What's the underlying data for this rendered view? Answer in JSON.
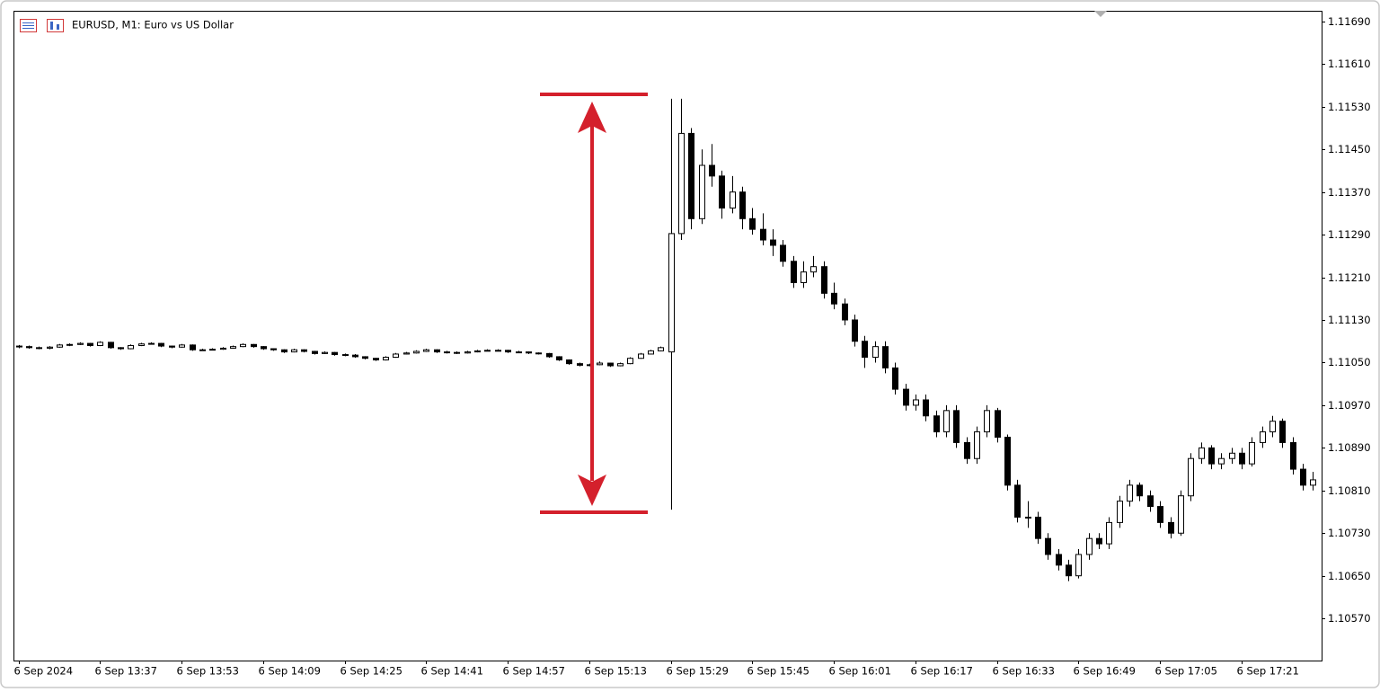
{
  "chart_data": {
    "type": "candlestick",
    "title": "EURUSD, M1:  Euro vs US Dollar",
    "categories": [
      "6 Sep 2024",
      null,
      null,
      null,
      null,
      null,
      null,
      null,
      "6 Sep 13:37",
      null,
      null,
      null,
      null,
      null,
      null,
      null,
      "6 Sep 13:53",
      null,
      null,
      null,
      null,
      null,
      null,
      null,
      "6 Sep 14:09",
      null,
      null,
      null,
      null,
      null,
      null,
      null,
      "6 Sep 14:25",
      null,
      null,
      null,
      null,
      null,
      null,
      null,
      "6 Sep 14:41",
      null,
      null,
      null,
      null,
      null,
      null,
      null,
      "6 Sep 14:57",
      null,
      null,
      null,
      null,
      null,
      null,
      null,
      "6 Sep 15:13",
      null,
      null,
      null,
      null,
      null,
      null,
      null,
      "6 Sep 15:29",
      null,
      null,
      null,
      null,
      null,
      null,
      null,
      "6 Sep 15:45",
      null,
      null,
      null,
      null,
      null,
      null,
      null,
      "6 Sep 16:01",
      null,
      null,
      null,
      null,
      null,
      null,
      null,
      "6 Sep 16:17",
      null,
      null,
      null,
      null,
      null,
      null,
      null,
      "6 Sep 16:33",
      null,
      null,
      null,
      null,
      null,
      null,
      null,
      "6 Sep 16:49",
      null,
      null,
      null,
      null,
      null,
      null,
      null,
      "6 Sep 17:05",
      null,
      null,
      null,
      null,
      null,
      null,
      null,
      "6 Sep 17:21",
      null,
      null,
      null,
      null,
      null,
      null,
      null
    ],
    "open": [
      1.11081,
      1.1108,
      1.11078,
      1.11077,
      1.11079,
      1.11083,
      1.11084,
      1.11086,
      1.11082,
      1.11088,
      1.11078,
      1.11076,
      1.11082,
      1.11085,
      1.11086,
      1.11081,
      1.11079,
      1.11083,
      1.11074,
      1.11074,
      1.11075,
      1.11077,
      1.1108,
      1.11084,
      1.1108,
      1.11076,
      1.11074,
      1.1107,
      1.11074,
      1.11071,
      1.11067,
      1.11069,
      1.11065,
      1.11064,
      1.11061,
      1.11058,
      1.11055,
      1.1106,
      1.11066,
      1.11068,
      1.11071,
      1.11074,
      1.1107,
      1.11069,
      1.11068,
      1.1107,
      1.11072,
      1.11073,
      1.11073,
      1.1107,
      1.1107,
      1.11068,
      1.11067,
      1.11061,
      1.11055,
      1.11048,
      1.11045,
      1.11046,
      1.11049,
      1.11044,
      1.11048,
      1.11058,
      1.11066,
      1.11072,
      1.1107,
      1.11292,
      1.1148,
      1.1132,
      1.1142,
      1.114,
      1.1134,
      1.1137,
      1.1132,
      1.113,
      1.1128,
      1.1127,
      1.1124,
      1.112,
      1.1122,
      1.1123,
      1.1118,
      1.1116,
      1.1113,
      1.1109,
      1.1106,
      1.1108,
      1.1104,
      1.11,
      1.1097,
      1.1098,
      1.1095,
      1.1092,
      1.1096,
      1.109,
      1.1087,
      1.1092,
      1.1096,
      1.1091,
      1.1082,
      1.1076,
      1.1076,
      1.1072,
      1.1069,
      1.1067,
      1.1065,
      1.1069,
      1.1072,
      1.1071,
      1.1075,
      1.1079,
      1.1082,
      1.108,
      1.1078,
      1.1075,
      1.1073,
      1.108,
      1.1087,
      1.1089,
      1.1086,
      1.1087,
      1.1088,
      1.1086,
      1.109,
      1.1092,
      1.1094,
      1.109,
      1.1085,
      1.1082
    ],
    "high": [
      1.11083,
      1.11082,
      1.1108,
      1.11081,
      1.11085,
      1.11086,
      1.11088,
      1.11087,
      1.1109,
      1.11089,
      1.11079,
      1.11084,
      1.11087,
      1.11088,
      1.11087,
      1.11082,
      1.11085,
      1.11084,
      1.11076,
      1.11077,
      1.11079,
      1.11082,
      1.11086,
      1.11085,
      1.11081,
      1.11077,
      1.11075,
      1.11076,
      1.11075,
      1.11072,
      1.11071,
      1.1107,
      1.11067,
      1.11066,
      1.11062,
      1.11059,
      1.11062,
      1.11068,
      1.1107,
      1.11073,
      1.11076,
      1.11075,
      1.11072,
      1.11071,
      1.11072,
      1.11074,
      1.11075,
      1.11075,
      1.11074,
      1.11072,
      1.11071,
      1.11069,
      1.11068,
      1.11062,
      1.11056,
      1.1105,
      1.11048,
      1.11052,
      1.1105,
      1.1105,
      1.1106,
      1.11068,
      1.11074,
      1.1108,
      1.11545,
      1.11545,
      1.1149,
      1.1145,
      1.1146,
      1.1141,
      1.114,
      1.1138,
      1.1134,
      1.1133,
      1.113,
      1.1128,
      1.1125,
      1.1124,
      1.1125,
      1.1124,
      1.112,
      1.1117,
      1.1114,
      1.111,
      1.1109,
      1.1109,
      1.1105,
      1.1101,
      1.1099,
      1.1099,
      1.1096,
      1.1097,
      1.1097,
      1.1091,
      1.1093,
      1.1097,
      1.10965,
      1.10915,
      1.1083,
      1.1079,
      1.1077,
      1.1073,
      1.107,
      1.1068,
      1.107,
      1.1073,
      1.1073,
      1.1076,
      1.108,
      1.1083,
      1.10825,
      1.1081,
      1.1079,
      1.1076,
      1.1081,
      1.1088,
      1.109,
      1.10895,
      1.1088,
      1.1089,
      1.1089,
      1.1091,
      1.1093,
      1.1095,
      1.10945,
      1.1091,
      1.1086,
      1.10845
    ],
    "low": [
      1.11077,
      1.11076,
      1.11075,
      1.11075,
      1.11078,
      1.11081,
      1.11083,
      1.1108,
      1.11081,
      1.11076,
      1.11074,
      1.11075,
      1.11081,
      1.11084,
      1.11079,
      1.11077,
      1.11078,
      1.11072,
      1.11072,
      1.11073,
      1.11074,
      1.11076,
      1.11079,
      1.11078,
      1.11074,
      1.11072,
      1.11068,
      1.11069,
      1.11069,
      1.11065,
      1.11066,
      1.11063,
      1.11062,
      1.11059,
      1.11056,
      1.11053,
      1.11054,
      1.11059,
      1.11065,
      1.11067,
      1.1107,
      1.11068,
      1.11067,
      1.11066,
      1.11067,
      1.11069,
      1.11071,
      1.11071,
      1.11068,
      1.11068,
      1.11066,
      1.11065,
      1.11059,
      1.11053,
      1.11046,
      1.11043,
      1.11043,
      1.11045,
      1.11042,
      1.11043,
      1.11047,
      1.11057,
      1.11065,
      1.11071,
      1.10774,
      1.1128,
      1.113,
      1.1131,
      1.1138,
      1.1132,
      1.1133,
      1.113,
      1.1129,
      1.1127,
      1.1125,
      1.1123,
      1.1119,
      1.1119,
      1.1121,
      1.1117,
      1.1115,
      1.1112,
      1.1108,
      1.1104,
      1.1105,
      1.1103,
      1.1099,
      1.1096,
      1.1096,
      1.1094,
      1.1091,
      1.1091,
      1.1089,
      1.1086,
      1.1086,
      1.1091,
      1.109,
      1.1081,
      1.1075,
      1.1074,
      1.1071,
      1.1068,
      1.1066,
      1.1064,
      1.10645,
      1.1068,
      1.107,
      1.107,
      1.1074,
      1.1078,
      1.1079,
      1.1077,
      1.1074,
      1.1072,
      1.10725,
      1.1079,
      1.1086,
      1.1085,
      1.1085,
      1.1086,
      1.1085,
      1.10855,
      1.1089,
      1.1091,
      1.1089,
      1.1084,
      1.1081,
      1.1081
    ],
    "close": [
      1.1108,
      1.11078,
      1.11077,
      1.11079,
      1.11083,
      1.11084,
      1.11086,
      1.11082,
      1.11088,
      1.11078,
      1.11076,
      1.11082,
      1.11085,
      1.11086,
      1.11081,
      1.11079,
      1.11083,
      1.11074,
      1.11074,
      1.11075,
      1.11077,
      1.1108,
      1.11084,
      1.1108,
      1.11076,
      1.11074,
      1.1107,
      1.11074,
      1.11071,
      1.11067,
      1.11069,
      1.11065,
      1.11064,
      1.11061,
      1.11058,
      1.11055,
      1.1106,
      1.11066,
      1.11068,
      1.11071,
      1.11074,
      1.1107,
      1.11069,
      1.11068,
      1.1107,
      1.11072,
      1.11073,
      1.11073,
      1.1107,
      1.1107,
      1.11068,
      1.11067,
      1.11061,
      1.11055,
      1.11048,
      1.11045,
      1.11046,
      1.11049,
      1.11044,
      1.11048,
      1.11058,
      1.11066,
      1.11072,
      1.11078,
      1.11292,
      1.1148,
      1.1132,
      1.1142,
      1.114,
      1.1134,
      1.1137,
      1.1132,
      1.113,
      1.1128,
      1.1127,
      1.1124,
      1.112,
      1.1122,
      1.1123,
      1.1118,
      1.1116,
      1.1113,
      1.1109,
      1.1106,
      1.1108,
      1.1104,
      1.11,
      1.1097,
      1.1098,
      1.1095,
      1.1092,
      1.1096,
      1.109,
      1.1087,
      1.1092,
      1.1096,
      1.1091,
      1.1082,
      1.1076,
      1.1076,
      1.1072,
      1.1069,
      1.1067,
      1.1065,
      1.1069,
      1.1072,
      1.1071,
      1.1075,
      1.1079,
      1.1082,
      1.108,
      1.1078,
      1.1075,
      1.1073,
      1.108,
      1.1087,
      1.1089,
      1.1086,
      1.1087,
      1.1088,
      1.1086,
      1.109,
      1.1092,
      1.1094,
      1.109,
      1.1085,
      1.1082,
      1.1083
    ],
    "up_color": "#ffffff",
    "down_color": "#000000",
    "ylim": [
      1.10491,
      1.1171
    ],
    "yticks": [
      {
        "value": 1.1169,
        "label": "1.11690"
      },
      {
        "value": 1.1161,
        "label": "1.11610"
      },
      {
        "value": 1.1153,
        "label": "1.11530"
      },
      {
        "value": 1.1145,
        "label": "1.11450"
      },
      {
        "value": 1.1137,
        "label": "1.11370"
      },
      {
        "value": 1.1129,
        "label": "1.11290"
      },
      {
        "value": 1.1121,
        "label": "1.11210"
      },
      {
        "value": 1.1113,
        "label": "1.11130"
      },
      {
        "value": 1.1105,
        "label": "1.11050"
      },
      {
        "value": 1.1097,
        "label": "1.10970"
      },
      {
        "value": 1.1089,
        "label": "1.10890"
      },
      {
        "value": 1.1081,
        "label": "1.10810"
      },
      {
        "value": 1.1073,
        "label": "1.10730"
      },
      {
        "value": 1.1065,
        "label": "1.10650"
      },
      {
        "value": 1.1057,
        "label": "1.10570"
      }
    ],
    "grid": false
  }
}
